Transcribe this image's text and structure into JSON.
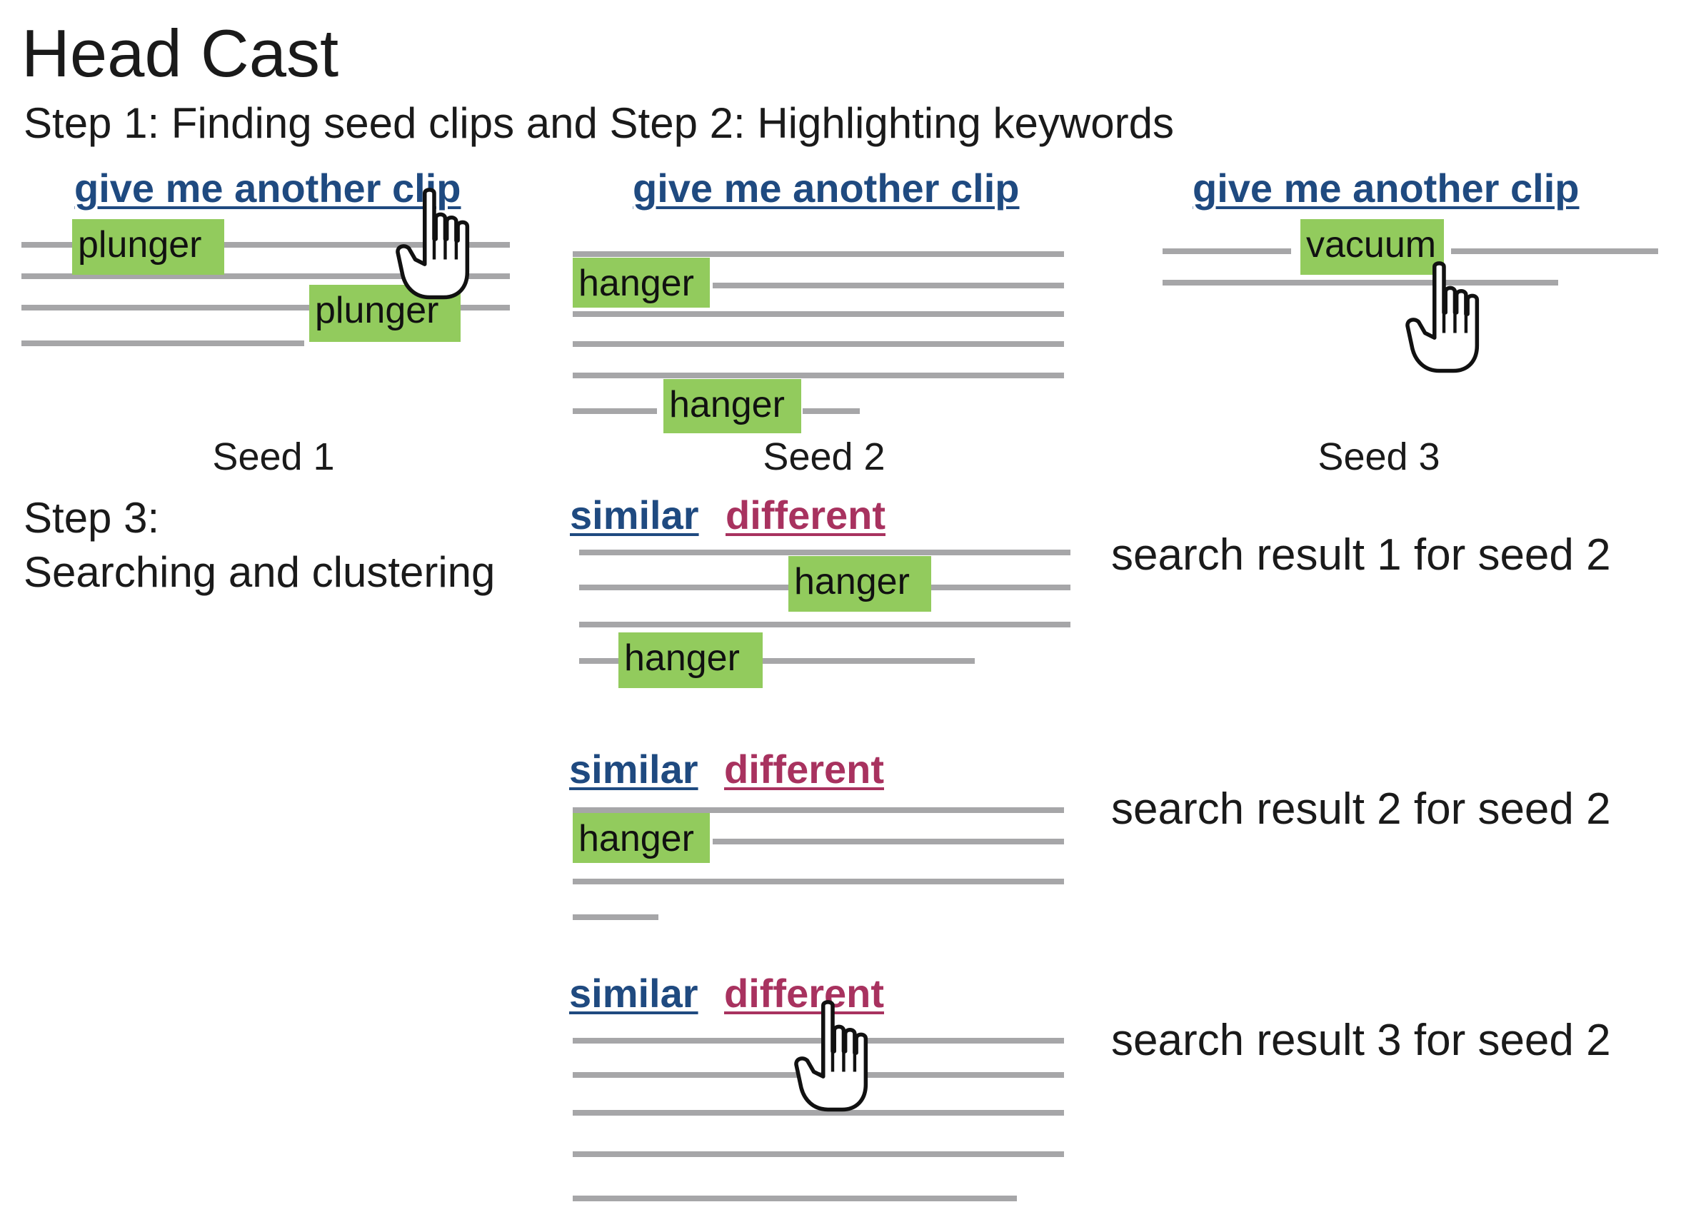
{
  "title": "Head Cast",
  "subtitle": "Step 1: Finding seed clips and Step 2: Highlighting keywords",
  "step3": {
    "line1": "Step 3:",
    "line2": "Searching and clustering"
  },
  "seeds": [
    {
      "link": "give me another clip",
      "keyword": "plunger",
      "caption": "Seed 1"
    },
    {
      "link": "give me another clip",
      "keyword": "hanger",
      "caption": "Seed 2"
    },
    {
      "link": "give me another clip",
      "keyword": "vacuum",
      "caption": "Seed 3"
    }
  ],
  "results": [
    {
      "similar": "similar",
      "different": "different",
      "keyword": "hanger",
      "label": "search result 1 for seed 2"
    },
    {
      "similar": "similar",
      "different": "different",
      "keyword": "hanger",
      "label": "search result 2 for seed 2"
    },
    {
      "similar": "similar",
      "different": "different",
      "label": "search result 3 for seed 2"
    }
  ],
  "colors": {
    "link_blue": "#1f4a80",
    "link_red": "#a8325f",
    "keyword_highlight": "#92cb5d",
    "text_line": "#a6a6a8"
  },
  "icons": [
    "pointing-hand-cursor-icon"
  ]
}
